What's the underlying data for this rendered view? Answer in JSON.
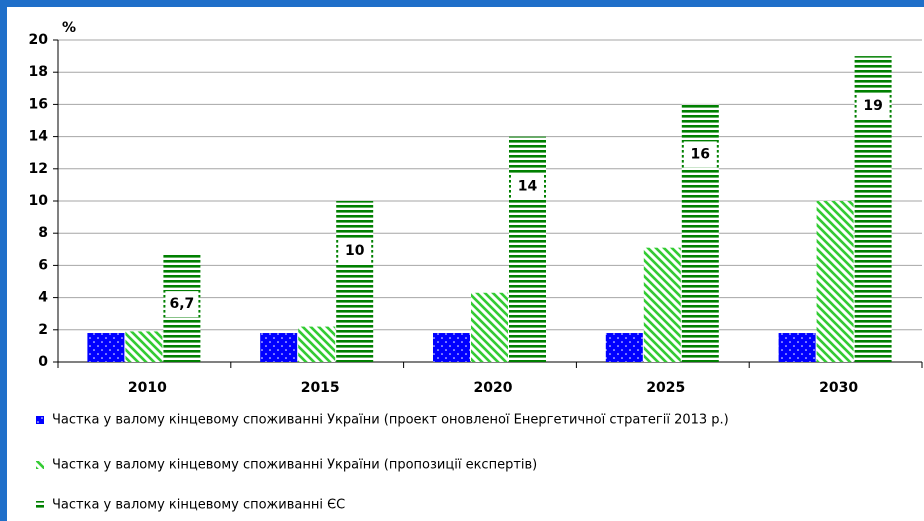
{
  "chart_data": {
    "type": "bar",
    "y_label": "%",
    "categories": [
      "2010",
      "2015",
      "2020",
      "2025",
      "2030"
    ],
    "series": [
      {
        "name": "Частка у валому кінцевому споживанні України (проект оновленої Енергетичної стратегії 2013 р.)",
        "color": "#0000ff",
        "pattern": "dots",
        "values": [
          1.8,
          1.8,
          1.8,
          1.8,
          1.8
        ]
      },
      {
        "name": "Частка у валому кінцевому споживанні України (пропозиції експертів)",
        "color": "#33cc33",
        "pattern": "diagonal",
        "values": [
          1.9,
          2.2,
          4.3,
          7.1,
          10
        ]
      },
      {
        "name": "Частка у валому кінцевому споживанні ЄС",
        "color": "#008000",
        "pattern": "horizontal",
        "values": [
          6.7,
          10,
          14,
          16,
          19
        ],
        "value_labels": [
          "6,7",
          "10",
          "14",
          "16",
          "19"
        ]
      }
    ],
    "ylim": [
      0,
      20
    ],
    "yticks": [
      0,
      2,
      4,
      6,
      8,
      10,
      12,
      14,
      16,
      18,
      20
    ],
    "grid": true
  }
}
